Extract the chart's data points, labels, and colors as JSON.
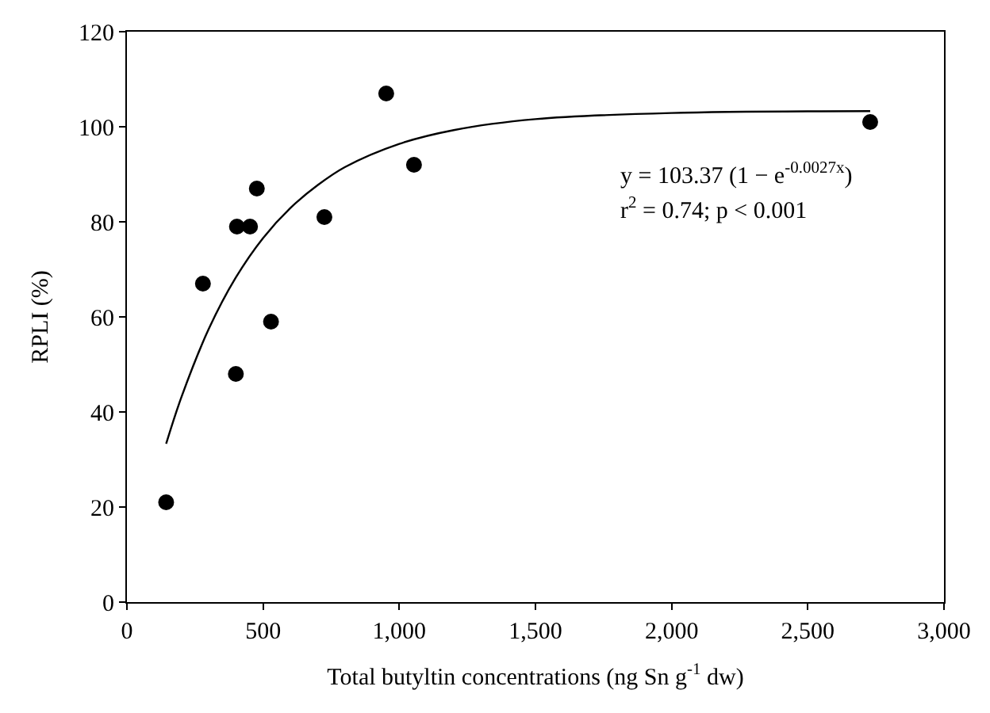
{
  "chart_data": {
    "type": "scatter",
    "xlabel": "Total butyltin concentrations (ng Sn g$^{-1}$ dw)",
    "ylabel": "RPLI (%)",
    "series": [
      {
        "color": "#000000",
        "marker": "circle",
        "x": [
          144,
          279,
          400,
          404,
          452,
          477,
          529,
          725,
          952,
          1054,
          2729
        ],
        "values": [
          21,
          67,
          48,
          79,
          79,
          87,
          59,
          81,
          107,
          92,
          101
        ]
      },
      {
        "type": "line",
        "color": "#000000",
        "marker": "none",
        "line_style": "solid",
        "x": [
          144,
          200,
          300,
          400,
          500,
          600,
          700,
          800,
          1000,
          1200,
          1500,
          2000,
          2729
        ],
        "values": [
          33.3,
          43.1,
          57.4,
          68.3,
          76.6,
          82.9,
          87.7,
          91.5,
          96.4,
          99.3,
          101.6,
          102.9,
          103.3
        ]
      }
    ],
    "annotations": [
      "y = 103.37 (1 − e$^{-0.0027x}$)",
      "r$^{2}$ = 0.74; p < 0.001"
    ],
    "xlim": [
      0,
      3000
    ],
    "xticks": [
      0,
      {
        "value": 500,
        "label": "500"
      },
      {
        "value": 1000,
        "label": "1,000"
      },
      {
        "value": 1500,
        "label": "1,500"
      },
      {
        "value": 2000,
        "label": "2,000"
      },
      {
        "value": 2500,
        "label": "2,500"
      },
      {
        "value": 3000,
        "label": "3,000"
      }
    ],
    "ylim": [
      0,
      120
    ],
    "yticks": [
      0,
      20,
      40,
      60,
      80,
      100,
      120
    ]
  }
}
